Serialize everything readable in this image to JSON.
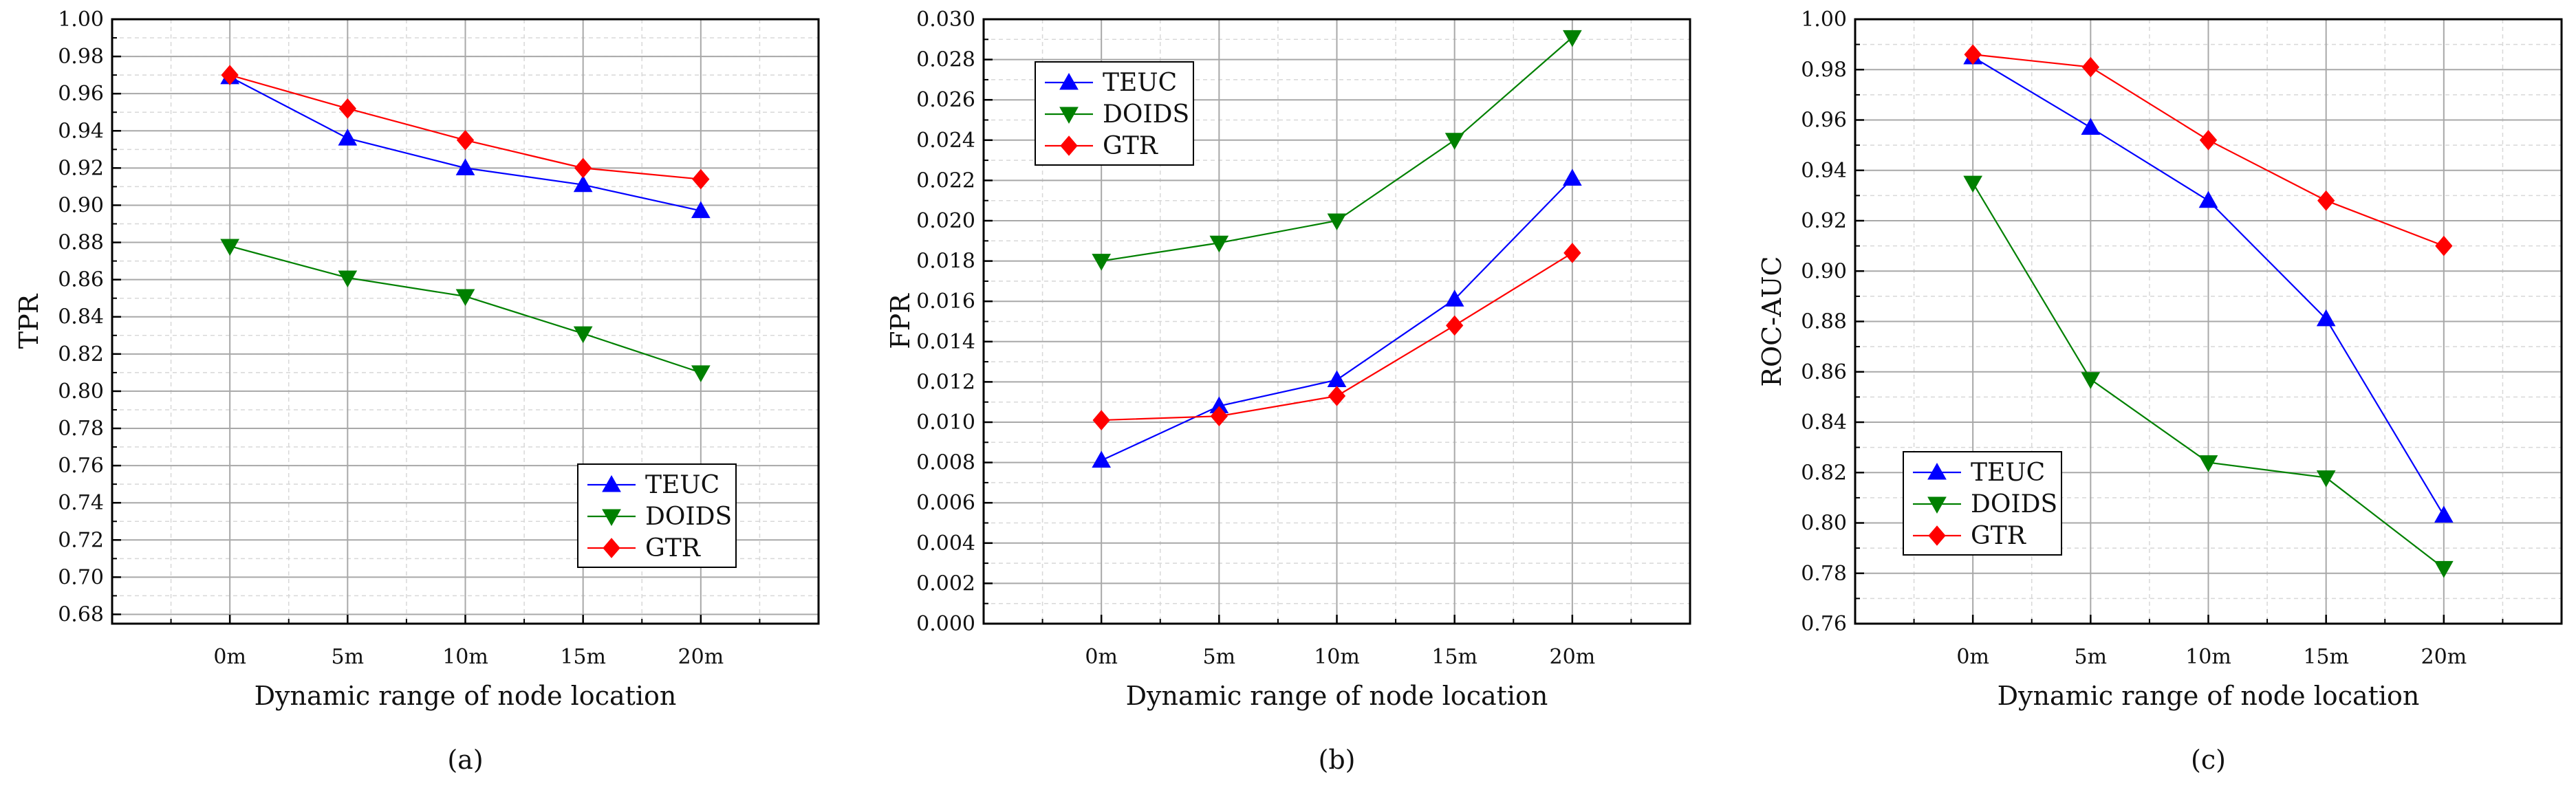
{
  "chart_data": [
    {
      "type": "line",
      "caption": "(a)",
      "xlabel": "Dynamic range of node location",
      "ylabel": "TPR",
      "categories": [
        "0m",
        "5m",
        "10m",
        "15m",
        "20m"
      ],
      "ylim": [
        0.675,
        1.0
      ],
      "y_ticks": [
        "0.68",
        "0.70",
        "0.72",
        "0.74",
        "0.76",
        "0.78",
        "0.80",
        "0.82",
        "0.84",
        "0.86",
        "0.88",
        "0.90",
        "0.92",
        "0.94",
        "0.96",
        "0.98",
        "1.00"
      ],
      "y_tick_values": [
        0.68,
        0.7,
        0.72,
        0.74,
        0.76,
        0.78,
        0.8,
        0.82,
        0.84,
        0.86,
        0.88,
        0.9,
        0.92,
        0.94,
        0.96,
        0.98,
        1.0
      ],
      "legend_position": "bottom-right",
      "series": [
        {
          "name": "TEUC",
          "values": [
            0.969,
            0.936,
            0.92,
            0.911,
            0.897
          ]
        },
        {
          "name": "DOIDS",
          "values": [
            0.878,
            0.861,
            0.851,
            0.831,
            0.81
          ]
        },
        {
          "name": "GTR",
          "values": [
            0.97,
            0.952,
            0.935,
            0.92,
            0.914
          ]
        }
      ]
    },
    {
      "type": "line",
      "caption": "(b)",
      "xlabel": "Dynamic range of node location",
      "ylabel": "FPR",
      "categories": [
        "0m",
        "5m",
        "10m",
        "15m",
        "20m"
      ],
      "ylim": [
        0.0,
        0.03
      ],
      "y_ticks": [
        "0.000",
        "0.002",
        "0.004",
        "0.006",
        "0.008",
        "0.010",
        "0.012",
        "0.014",
        "0.016",
        "0.018",
        "0.020",
        "0.022",
        "0.024",
        "0.026",
        "0.028",
        "0.030"
      ],
      "y_tick_values": [
        0.0,
        0.002,
        0.004,
        0.006,
        0.008,
        0.01,
        0.012,
        0.014,
        0.016,
        0.018,
        0.02,
        0.022,
        0.024,
        0.026,
        0.028,
        0.03
      ],
      "legend_position": "top-left",
      "series": [
        {
          "name": "TEUC",
          "values": [
            0.0081,
            0.0108,
            0.0121,
            0.0161,
            0.0221
          ]
        },
        {
          "name": "DOIDS",
          "values": [
            0.018,
            0.0189,
            0.02,
            0.024,
            0.0291
          ]
        },
        {
          "name": "GTR",
          "values": [
            0.0101,
            0.0103,
            0.0113,
            0.0148,
            0.0184
          ]
        }
      ]
    },
    {
      "type": "line",
      "caption": "(c)",
      "xlabel": "Dynamic range of node location",
      "ylabel": "ROC-AUC",
      "categories": [
        "0m",
        "5m",
        "10m",
        "15m",
        "20m"
      ],
      "ylim": [
        0.76,
        1.0
      ],
      "y_ticks": [
        "0.76",
        "0.78",
        "0.80",
        "0.82",
        "0.84",
        "0.86",
        "0.88",
        "0.90",
        "0.92",
        "0.94",
        "0.96",
        "0.98",
        "1.00"
      ],
      "y_tick_values": [
        0.76,
        0.78,
        0.8,
        0.82,
        0.84,
        0.86,
        0.88,
        0.9,
        0.92,
        0.94,
        0.96,
        0.98,
        1.0
      ],
      "legend_position": "bottom-left",
      "series": [
        {
          "name": "TEUC",
          "values": [
            0.985,
            0.957,
            0.928,
            0.881,
            0.803
          ]
        },
        {
          "name": "DOIDS",
          "values": [
            0.935,
            0.857,
            0.824,
            0.818,
            0.782
          ]
        },
        {
          "name": "GTR",
          "values": [
            0.986,
            0.981,
            0.952,
            0.928,
            0.91
          ]
        }
      ]
    }
  ],
  "series_colors": {
    "TEUC": "#0000ff",
    "DOIDS": "#008000",
    "GTR": "#ff0000"
  },
  "series_markers": {
    "TEUC": "triangle-up",
    "DOIDS": "triangle-down",
    "GTR": "diamond"
  }
}
